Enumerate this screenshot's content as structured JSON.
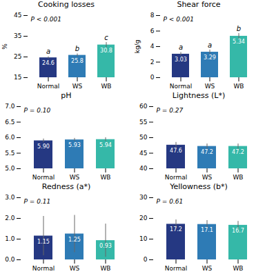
{
  "chart_data": [
    {
      "type": "bar",
      "title": "Cooking losses",
      "ylabel": "%",
      "annotation": "P < 0.001",
      "categories": [
        "Normal",
        "WS",
        "WB"
      ],
      "values": [
        24.6,
        25.8,
        30.8
      ],
      "errors": [
        0.5,
        0.7,
        1.2
      ],
      "letters": [
        "a",
        "b",
        "c"
      ],
      "colors": [
        "#253882",
        "#2E7BB5",
        "#35B8A8"
      ],
      "ylim": [
        15,
        45
      ],
      "yticks": [
        15,
        25,
        35,
        45
      ],
      "data_labels": true,
      "grid": false
    },
    {
      "type": "bar",
      "title": "Shear force",
      "ylabel": "kg/g",
      "annotation": "P < 0.001",
      "categories": [
        "Normal",
        "WS",
        "WB"
      ],
      "values": [
        3.03,
        3.29,
        5.34
      ],
      "errors": [
        0.22,
        0.28,
        0.35
      ],
      "letters": [
        "a",
        "a",
        "b"
      ],
      "colors": [
        "#253882",
        "#2E7BB5",
        "#35B8A8"
      ],
      "ylim": [
        0,
        8
      ],
      "yticks": [
        0,
        2,
        4,
        6,
        8
      ],
      "data_labels": true,
      "grid": false
    },
    {
      "type": "bar",
      "title": "pH",
      "annotation": "P = 0.10",
      "categories": [
        "Normal",
        "WS",
        "WB"
      ],
      "values": [
        5.9,
        5.93,
        5.94
      ],
      "value_labels": [
        "5.90",
        "5.93",
        "5.94"
      ],
      "errors": [
        0.06,
        0.05,
        0.06
      ],
      "colors": [
        "#253882",
        "#2E7BB5",
        "#35B8A8"
      ],
      "ylim": [
        5.0,
        7.0
      ],
      "yticks": [
        {
          "value": 5.0,
          "label": "5.0"
        },
        {
          "value": 5.5,
          "label": "5.5"
        },
        {
          "value": 6.0,
          "label": "6.0"
        },
        {
          "value": 6.5,
          "label": "6.5"
        },
        {
          "value": 7.0,
          "label": "7.0"
        }
      ],
      "data_labels": true,
      "grid": false
    },
    {
      "type": "bar",
      "title": "Lightness (L*)",
      "annotation": "P = 0.27",
      "categories": [
        "Normal",
        "WS",
        "WB"
      ],
      "values": [
        47.6,
        47.2,
        47.2
      ],
      "errors": [
        0.9,
        0.8,
        0.8
      ],
      "colors": [
        "#253882",
        "#2E7BB5",
        "#35B8A8"
      ],
      "ylim": [
        40,
        60
      ],
      "yticks": [
        40,
        45,
        50,
        55,
        60
      ],
      "data_labels": true,
      "grid": false
    },
    {
      "type": "bar",
      "title": "Redness (a*)",
      "annotation": "P = 0.11",
      "categories": [
        "Normal",
        "WS",
        "WB"
      ],
      "values": [
        1.15,
        1.25,
        0.93
      ],
      "errors": [
        0.95,
        0.9,
        0.8
      ],
      "colors": [
        "#253882",
        "#2E7BB5",
        "#35B8A8"
      ],
      "ylim": [
        0.0,
        3.0
      ],
      "yticks": [
        {
          "value": 0.0,
          "label": "0.0"
        },
        {
          "value": 1.0,
          "label": "1.0"
        },
        {
          "value": 2.0,
          "label": "2.0"
        },
        {
          "value": 3.0,
          "label": "3.0"
        }
      ],
      "data_labels": true,
      "grid": false
    },
    {
      "type": "bar",
      "title": "Yellowness (b*)",
      "annotation": "P = 0.61",
      "categories": [
        "Normal",
        "WS",
        "WB"
      ],
      "values": [
        17.2,
        17.1,
        16.7
      ],
      "errors": [
        2.1,
        1.9,
        1.9
      ],
      "colors": [
        "#253882",
        "#2E7BB5",
        "#35B8A8"
      ],
      "ylim": [
        0,
        30
      ],
      "yticks": [
        0,
        10,
        20,
        30
      ],
      "data_labels": true,
      "grid": false
    }
  ]
}
